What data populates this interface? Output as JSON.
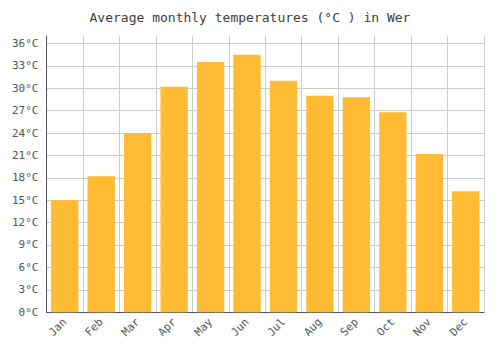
{
  "chart_data": {
    "type": "bar",
    "title": "Average monthly temperatures (°C ) in Wer",
    "categories": [
      "Jan",
      "Feb",
      "Mar",
      "Apr",
      "May",
      "Jun",
      "Jul",
      "Aug",
      "Sep",
      "Oct",
      "Nov",
      "Dec"
    ],
    "values": [
      15.0,
      18.2,
      24.0,
      30.2,
      33.5,
      34.5,
      31.0,
      29.0,
      28.8,
      26.8,
      21.2,
      16.2
    ],
    "color": "#FFBB33",
    "ylim": [
      0,
      37
    ],
    "yticks": [
      {
        "value": 0,
        "label": "0°C"
      },
      {
        "value": 3,
        "label": "3°C"
      },
      {
        "value": 6,
        "label": "6°C"
      },
      {
        "value": 9,
        "label": "9°C"
      },
      {
        "value": 12,
        "label": "12°C"
      },
      {
        "value": 15,
        "label": "15°C"
      },
      {
        "value": 18,
        "label": "18°C"
      },
      {
        "value": 21,
        "label": "21°C"
      },
      {
        "value": 24,
        "label": "24°C"
      },
      {
        "value": 27,
        "label": "27°C"
      },
      {
        "value": 30,
        "label": "30°C"
      },
      {
        "value": 33,
        "label": "33°C"
      },
      {
        "value": 36,
        "label": "36°C"
      }
    ],
    "grid": true
  }
}
